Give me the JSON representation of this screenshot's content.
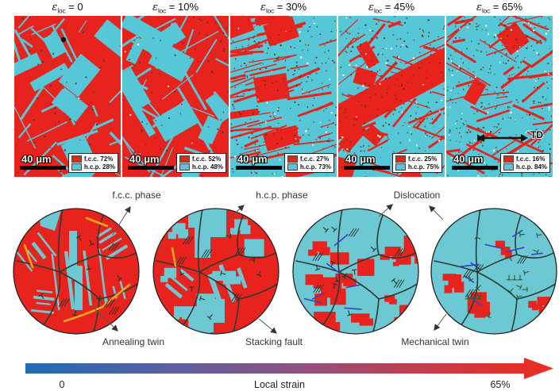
{
  "symbols": {
    "epsilon": "ε",
    "epsilon_sub": "loc"
  },
  "panels": [
    {
      "strain_label": "= 0",
      "scale_label": "40 μm",
      "legend": {
        "fcc": "f.c.c. 72%",
        "hcp": "h.c.p. 28%"
      },
      "fcc_pct": 72,
      "hcp_pct": 28
    },
    {
      "strain_label": "= 10%",
      "scale_label": "40 μm",
      "legend": {
        "fcc": "f.c.c. 52%",
        "hcp": "h.c.p. 48%"
      },
      "fcc_pct": 52,
      "hcp_pct": 48
    },
    {
      "strain_label": "= 30%",
      "scale_label": "40 μm",
      "legend": {
        "fcc": "f.c.c. 27%",
        "hcp": "h.c.p. 73%"
      },
      "fcc_pct": 27,
      "hcp_pct": 73
    },
    {
      "strain_label": "= 45%",
      "scale_label": "40 μm",
      "legend": {
        "fcc": "f.c.c. 25%",
        "hcp": "h.c.p. 75%"
      },
      "fcc_pct": 25,
      "hcp_pct": 75
    },
    {
      "strain_label": "= 65%",
      "scale_label": "40 μm",
      "legend": {
        "fcc": "f.c.c. 16%",
        "hcp": "h.c.p. 84%"
      },
      "fcc_pct": 16,
      "hcp_pct": 84,
      "direction_label": "TD"
    }
  ],
  "annotations": {
    "fcc_phase": "f.c.c. phase",
    "hcp_phase": "h.c.p. phase",
    "dislocation": "Dislocation",
    "annealing_twin": "Annealing twin",
    "stacking_fault": "Stacking fault",
    "mechanical_twin": "Mechanical twin"
  },
  "strain_bar": {
    "min_label": "0",
    "title": "Local strain",
    "max_label": "65%"
  },
  "colors": {
    "fcc_red": "#e8231d",
    "hcp_cyan": "#56c7d6",
    "schematic_cyan": "#6cc9d4",
    "annealing_twin_yellow": "#f2a51f",
    "mechanical_twin_blue": "#3742c8",
    "boundary_dark": "#2c3a33",
    "strain_gradient_start": "#1e6cb5",
    "strain_gradient_end": "#e62e24"
  }
}
